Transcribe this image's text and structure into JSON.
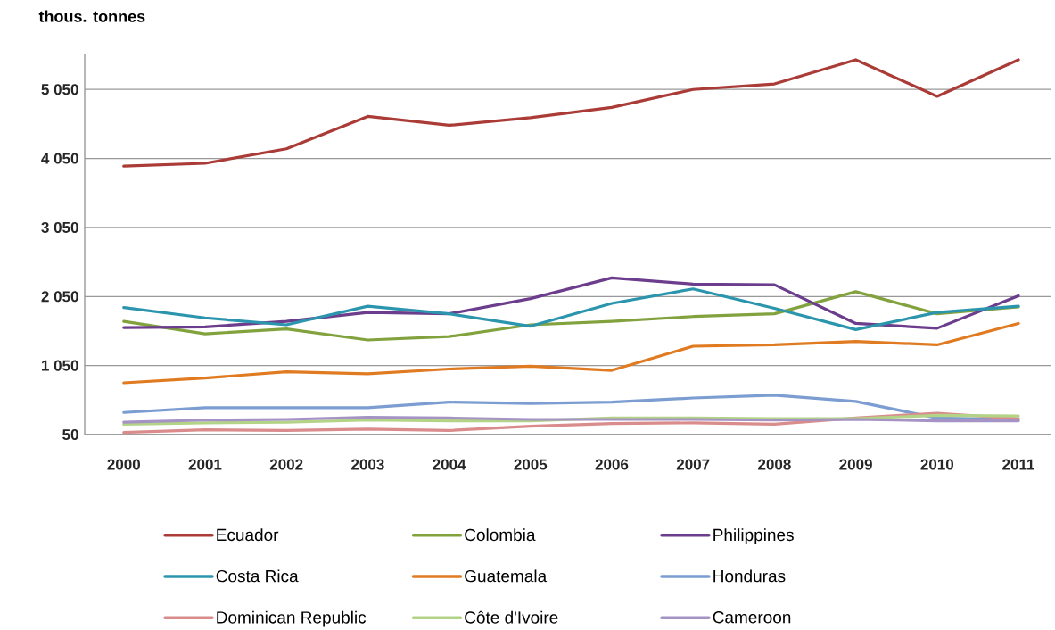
{
  "chart_data": {
    "type": "line",
    "ylabel": "thous. tonnes",
    "categories": [
      "2000",
      "2001",
      "2002",
      "2003",
      "2004",
      "2005",
      "2006",
      "2007",
      "2008",
      "2009",
      "2010",
      "2011"
    ],
    "ylim": [
      50,
      5570
    ],
    "yticks": [
      50,
      {
        "value": 1050,
        "label": "1 050"
      },
      {
        "value": 2050,
        "label": "2 050"
      },
      {
        "value": 3050,
        "label": "3 050"
      },
      {
        "value": 4050,
        "label": "4 050"
      },
      {
        "value": 5050,
        "label": "5 050"
      }
    ],
    "grid": "y",
    "legend": "bottom",
    "marker": "none",
    "line_style": "solid",
    "series": [
      {
        "name": "Ecuador",
        "color": "#aa3b36",
        "values": [
          3940,
          3980,
          4190,
          4660,
          4530,
          4640,
          4790,
          5050,
          5130,
          5480,
          4950,
          5480
        ]
      },
      {
        "name": "Colombia",
        "color": "#82a23e",
        "values": [
          1690,
          1510,
          1580,
          1420,
          1470,
          1640,
          1690,
          1760,
          1800,
          2120,
          1800,
          1900
        ]
      },
      {
        "name": "Philippines",
        "color": "#6b3d8c",
        "values": [
          1600,
          1610,
          1690,
          1820,
          1800,
          2020,
          2320,
          2230,
          2220,
          1660,
          1590,
          2060
        ]
      },
      {
        "name": "Costa Rica",
        "color": "#2c95ae",
        "values": [
          1890,
          1740,
          1640,
          1910,
          1800,
          1620,
          1950,
          2160,
          1880,
          1570,
          1820,
          1910
        ]
      },
      {
        "name": "Guatemala",
        "color": "#e07b22",
        "values": [
          800,
          870,
          960,
          930,
          1000,
          1040,
          980,
          1330,
          1350,
          1400,
          1350,
          1660
        ]
      },
      {
        "name": "Honduras",
        "color": "#7c9dd1",
        "values": [
          370,
          440,
          440,
          440,
          520,
          500,
          520,
          580,
          620,
          530,
          290,
          270
        ]
      },
      {
        "name": "Dominican Republic",
        "color": "#d98c8b",
        "values": [
          80,
          120,
          110,
          130,
          110,
          170,
          210,
          220,
          200,
          290,
          360,
          280
        ]
      },
      {
        "name": "Côte d'Ivoire",
        "color": "#b3d387",
        "values": [
          200,
          220,
          230,
          260,
          250,
          250,
          290,
          290,
          280,
          280,
          330,
          320
        ]
      },
      {
        "name": "Cameroon",
        "color": "#a493c4",
        "values": [
          230,
          260,
          270,
          300,
          290,
          270,
          270,
          270,
          260,
          270,
          250,
          250
        ]
      }
    ]
  }
}
